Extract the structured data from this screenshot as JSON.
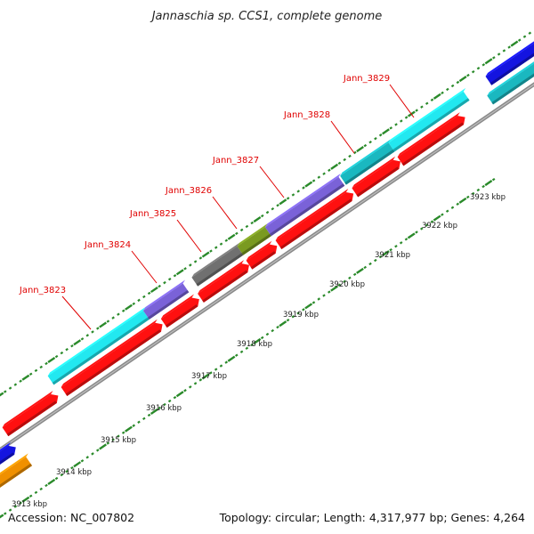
{
  "title": "Jannaschia sp. CCS1, complete genome",
  "accession": "Accession: NC_007802",
  "summary": "Topology: circular; Length: 4,317,977 bp; Genes: 4,264",
  "colors": {
    "backbone": "#8a8a8a",
    "dots": "#2a8a2a",
    "gene_label": "#e00000",
    "cds": "#ff1010",
    "cyan": "#22e8f0",
    "teal": "#1ab8c0",
    "purple": "#7a62d8",
    "gray": "#707070",
    "olive": "#7a9a20",
    "blue": "#1414e0",
    "orange": "#f09000"
  },
  "gene_labels": [
    {
      "id": "Jann_3823",
      "text": "Jann_3823"
    },
    {
      "id": "Jann_3824",
      "text": "Jann_3824"
    },
    {
      "id": "Jann_3825",
      "text": "Jann_3825"
    },
    {
      "id": "Jann_3826",
      "text": "Jann_3826"
    },
    {
      "id": "Jann_3827",
      "text": "Jann_3827"
    },
    {
      "id": "Jann_3828",
      "text": "Jann_3828"
    },
    {
      "id": "Jann_3829",
      "text": "Jann_3829"
    }
  ],
  "kbp_ticks": [
    {
      "id": "3913",
      "text": "3913 kbp"
    },
    {
      "id": "3914",
      "text": "3914 kbp"
    },
    {
      "id": "3915",
      "text": "3915 kbp"
    },
    {
      "id": "3916",
      "text": "3916 kbp"
    },
    {
      "id": "3917",
      "text": "3917 kbp"
    },
    {
      "id": "3918",
      "text": "3918 kbp"
    },
    {
      "id": "3919",
      "text": "3919 kbp"
    },
    {
      "id": "3920",
      "text": "3920 kbp"
    },
    {
      "id": "3921",
      "text": "3921 kbp"
    },
    {
      "id": "3922",
      "text": "3922 kbp"
    },
    {
      "id": "3923",
      "text": "3923 kbp"
    }
  ]
}
